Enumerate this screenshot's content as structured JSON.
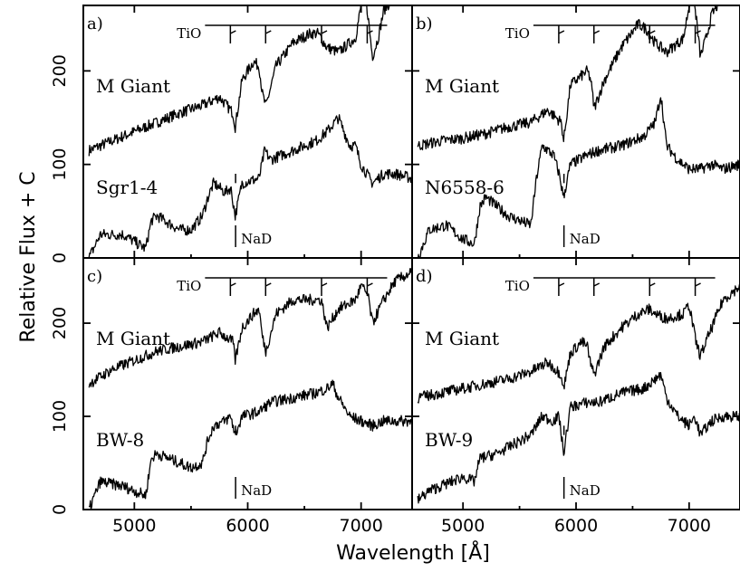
{
  "chart_data": {
    "type": "line",
    "ylabel": "Relative Flux + C",
    "xlabel": "Wavelength [Å]",
    "xlim": [
      4550,
      7450
    ],
    "ylim": [
      0,
      270
    ],
    "x_ticks": [
      5000,
      6000,
      7000
    ],
    "y_ticks": [
      0,
      100,
      200
    ],
    "features": {
      "tio": "TiO",
      "nad": "NaD"
    },
    "panels": [
      {
        "letter": "a)",
        "star": "Sgr1-4",
        "giant": "M Giant",
        "tio_positions": [
          5847,
          6158,
          6651,
          7054
        ],
        "nad_position": 5893,
        "giant_series": {
          "name": "M Giant",
          "x": [
            4600,
            4800,
            5000,
            5200,
            5400,
            5600,
            5750,
            5870,
            5890,
            5950,
            6050,
            6100,
            6130,
            6160,
            6250,
            6400,
            6550,
            6620,
            6700,
            6800,
            6950,
            7000,
            7020,
            7060,
            7100,
            7150,
            7200,
            7300,
            7450
          ],
          "y": [
            115,
            125,
            135,
            145,
            155,
            163,
            172,
            155,
            140,
            190,
            210,
            205,
            175,
            162,
            205,
            230,
            240,
            240,
            225,
            220,
            235,
            270,
            290,
            260,
            215,
            235,
            265,
            280,
            300
          ]
        },
        "star_series": {
          "name": "Sgr1-4",
          "x": [
            4600,
            4700,
            4900,
            5100,
            5150,
            5200,
            5400,
            5500,
            5600,
            5650,
            5700,
            5800,
            5850,
            5890,
            5950,
            6100,
            6150,
            6200,
            6400,
            6600,
            6700,
            6800,
            6900,
            6950,
            7000,
            7100,
            7200,
            7300,
            7450
          ],
          "y": [
            0,
            25,
            25,
            10,
            40,
            45,
            30,
            30,
            45,
            65,
            80,
            70,
            75,
            45,
            80,
            85,
            115,
            105,
            115,
            125,
            135,
            150,
            120,
            120,
            100,
            80,
            90,
            90,
            85
          ]
        }
      },
      {
        "letter": "b)",
        "star": "N6558-6",
        "giant": "M Giant",
        "tio_positions": [
          5847,
          6158,
          6651,
          7054
        ],
        "nad_position": 5893,
        "giant_series": {
          "name": "M Giant",
          "x": [
            4600,
            4800,
            5000,
            5200,
            5400,
            5600,
            5750,
            5870,
            5890,
            5950,
            6100,
            6130,
            6160,
            6250,
            6400,
            6550,
            6620,
            6700,
            6800,
            6950,
            7000,
            7020,
            7060,
            7100,
            7150,
            7200,
            7300,
            7450
          ],
          "y": [
            120,
            125,
            128,
            133,
            140,
            145,
            158,
            145,
            125,
            185,
            200,
            190,
            160,
            190,
            225,
            250,
            245,
            230,
            220,
            235,
            270,
            290,
            260,
            215,
            235,
            260,
            280,
            300
          ]
        },
        "star_series": {
          "name": "N6558-6",
          "x": [
            4600,
            4700,
            4850,
            5000,
            5100,
            5150,
            5200,
            5400,
            5600,
            5650,
            5700,
            5800,
            5850,
            5890,
            5950,
            6100,
            6200,
            6400,
            6600,
            6700,
            6750,
            6800,
            6900,
            7000,
            7100,
            7200,
            7300,
            7450
          ],
          "y": [
            0,
            30,
            35,
            20,
            15,
            55,
            65,
            45,
            35,
            85,
            120,
            110,
            90,
            65,
            100,
            110,
            115,
            120,
            130,
            145,
            175,
            120,
            105,
            95,
            95,
            100,
            95,
            100
          ]
        }
      },
      {
        "letter": "c)",
        "star": "BW-8",
        "giant": "M Giant",
        "tio_positions": [
          5847,
          6158,
          6651,
          7054
        ],
        "nad_position": 5893,
        "giant_series": {
          "name": "M Giant",
          "x": [
            4600,
            4800,
            5000,
            5200,
            5400,
            5600,
            5750,
            5870,
            5890,
            5950,
            6050,
            6100,
            6130,
            6160,
            6250,
            6400,
            6550,
            6650,
            6700,
            6800,
            6950,
            7000,
            7060,
            7100,
            7200,
            7300,
            7450
          ],
          "y": [
            135,
            150,
            160,
            170,
            175,
            180,
            190,
            180,
            160,
            195,
            210,
            215,
            185,
            170,
            210,
            225,
            225,
            225,
            195,
            215,
            225,
            240,
            230,
            200,
            225,
            245,
            255
          ]
        },
        "star_series": {
          "name": "BW-8",
          "x": [
            4600,
            4700,
            4900,
            5100,
            5150,
            5200,
            5400,
            5500,
            5600,
            5650,
            5700,
            5800,
            5850,
            5890,
            5950,
            6100,
            6200,
            6400,
            6600,
            6700,
            6750,
            6800,
            6900,
            7000,
            7100,
            7200,
            7300,
            7450
          ],
          "y": [
            0,
            30,
            25,
            15,
            55,
            60,
            50,
            45,
            50,
            75,
            90,
            95,
            100,
            80,
            100,
            105,
            115,
            120,
            125,
            130,
            135,
            120,
            100,
            95,
            90,
            95,
            95,
            95
          ]
        }
      },
      {
        "letter": "d)",
        "star": "BW-9",
        "giant": "M Giant",
        "tio_positions": [
          5847,
          6158,
          6651,
          7054
        ],
        "nad_position": 5893,
        "giant_series": {
          "name": "M Giant",
          "x": [
            4600,
            4800,
            5000,
            5200,
            5400,
            5600,
            5750,
            5870,
            5890,
            5950,
            6050,
            6100,
            6130,
            6160,
            6250,
            6400,
            6550,
            6650,
            6700,
            6800,
            6950,
            7000,
            7060,
            7100,
            7200,
            7300,
            7450
          ],
          "y": [
            120,
            125,
            130,
            135,
            140,
            148,
            158,
            145,
            130,
            168,
            180,
            175,
            155,
            145,
            175,
            195,
            210,
            215,
            210,
            205,
            210,
            220,
            180,
            165,
            195,
            225,
            240
          ]
        },
        "star_series": {
          "name": "BW-9",
          "x": [
            4600,
            4700,
            4900,
            5000,
            5100,
            5150,
            5300,
            5450,
            5600,
            5650,
            5700,
            5800,
            5850,
            5890,
            5950,
            6100,
            6200,
            6400,
            6600,
            6700,
            6750,
            6800,
            6900,
            7000,
            7050,
            7100,
            7200,
            7300,
            7450
          ],
          "y": [
            10,
            20,
            30,
            35,
            30,
            55,
            60,
            70,
            80,
            90,
            100,
            95,
            100,
            60,
            110,
            115,
            115,
            125,
            130,
            140,
            145,
            120,
            100,
            90,
            100,
            80,
            95,
            100,
            100
          ]
        }
      }
    ]
  }
}
